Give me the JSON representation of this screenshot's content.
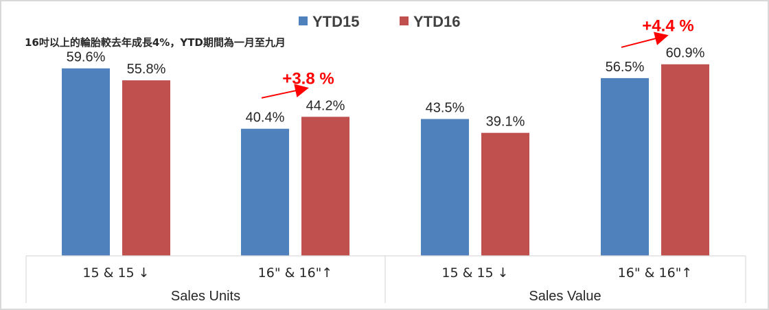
{
  "chart_data": {
    "type": "bar",
    "subtitle": "16吋以上的輪胎較去年成長4%，YTD期間為一月至九月",
    "groups": [
      {
        "label": "Sales Units",
        "categories": [
          "15 & 15 ↓",
          "16\" & 16\"↑"
        ]
      },
      {
        "label": "Sales Value",
        "categories": [
          "15 & 15 ↓",
          "16\" & 16\"↑"
        ]
      }
    ],
    "categories": [
      "15 & 15 ↓",
      "16\" & 16\"↑",
      "15 & 15 ↓",
      "16\" & 16\"↑"
    ],
    "series": [
      {
        "name": "YTD15",
        "color": "#4f81bd",
        "values": [
          59.6,
          40.4,
          43.5,
          56.5
        ],
        "labels": [
          "59.6%",
          "40.4%",
          "43.5%",
          "56.5%"
        ]
      },
      {
        "name": "YTD16",
        "color": "#c0504d",
        "values": [
          55.8,
          44.2,
          39.1,
          60.9
        ],
        "labels": [
          "55.8%",
          "44.2%",
          "39.1%",
          "60.9%"
        ]
      }
    ],
    "annotations": [
      {
        "text": "+3.8 %",
        "category_index": 1,
        "color": "#ff0000"
      },
      {
        "text": "+4.4 %",
        "category_index": 3,
        "color": "#ff0000"
      }
    ],
    "ylim": [
      0,
      70
    ],
    "legend_position": "top-center",
    "grid": false
  }
}
